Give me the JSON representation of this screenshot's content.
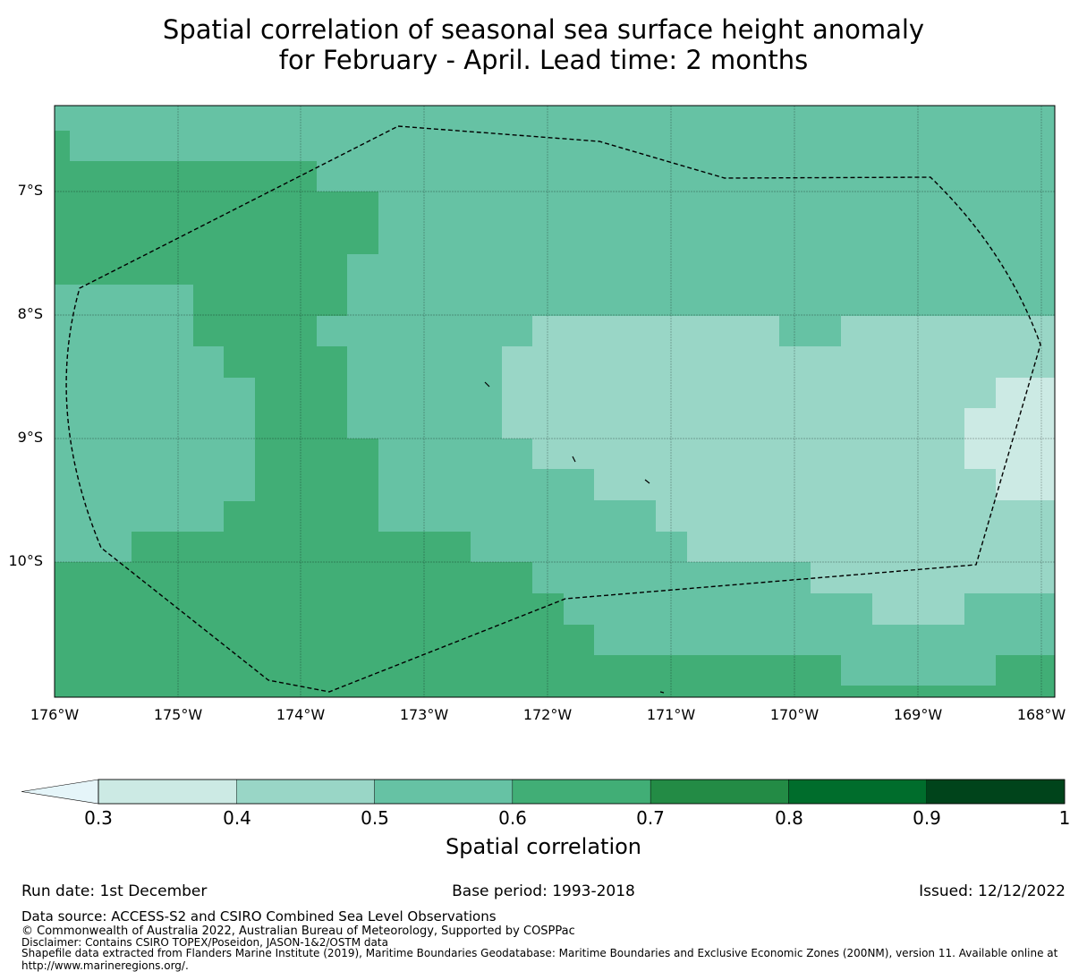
{
  "title": {
    "line1": "Spatial correlation of seasonal sea surface height anomaly",
    "line2": "for February - April. Lead time: 2 months"
  },
  "map": {
    "lat_labels": [
      "7°S",
      "8°S",
      "9°S",
      "10°S"
    ],
    "lon_labels": [
      "176°W",
      "175°W",
      "174°W",
      "173°W",
      "172°W",
      "171°W",
      "170°W",
      "169°W",
      "168°W"
    ],
    "lat_range": [
      -11.1,
      -6.3
    ],
    "lon_range": [
      -176.0,
      -167.9
    ],
    "grid_colors": {
      "0.3-0.4": "#cceae4",
      "0.4-0.5": "#99d6c6",
      "0.5-0.6": "#66c2a4",
      "0.6-0.7": "#41ae76",
      "0.7-0.8": "#238b45"
    },
    "boundary_label": "Exclusive Economic Zone",
    "boundary_color": "#000000",
    "land_color": "#000000"
  },
  "colorbar": {
    "ticks": [
      "0.3",
      "0.4",
      "0.5",
      "0.6",
      "0.7",
      "0.8",
      "0.9",
      "1"
    ],
    "under_color": "#e5f5f9",
    "colors": [
      "#cceae4",
      "#99d6c6",
      "#66c2a4",
      "#41ae76",
      "#238b45",
      "#006d2c",
      "#00441b"
    ],
    "label": "Spatial correlation"
  },
  "meta": {
    "run_date": "Run date: 1st December",
    "base_period": "Base period: 1993-2018",
    "issued": "Issued: 12/12/2022"
  },
  "footer": {
    "data_source": "Data source: ACCESS-S2 and CSIRO Combined Sea Level Observations",
    "copyright": "© Commonwealth of Australia 2022, Australian Bureau of Meteorology, Supported by COSPPac",
    "disclaimer": "Disclaimer: Contains CSIRO TOPEX/Poseidon, JASON-1&2/OSTM data",
    "shapefile_1": "Shapefile data extracted from Flanders Marine Institute (2019), Maritime Boundaries Geodatabase: Maritime Boundaries and Exclusive Economic Zones (200NM), version 11. Available online at",
    "shapefile_2": "http://www.marineregions.org/."
  }
}
